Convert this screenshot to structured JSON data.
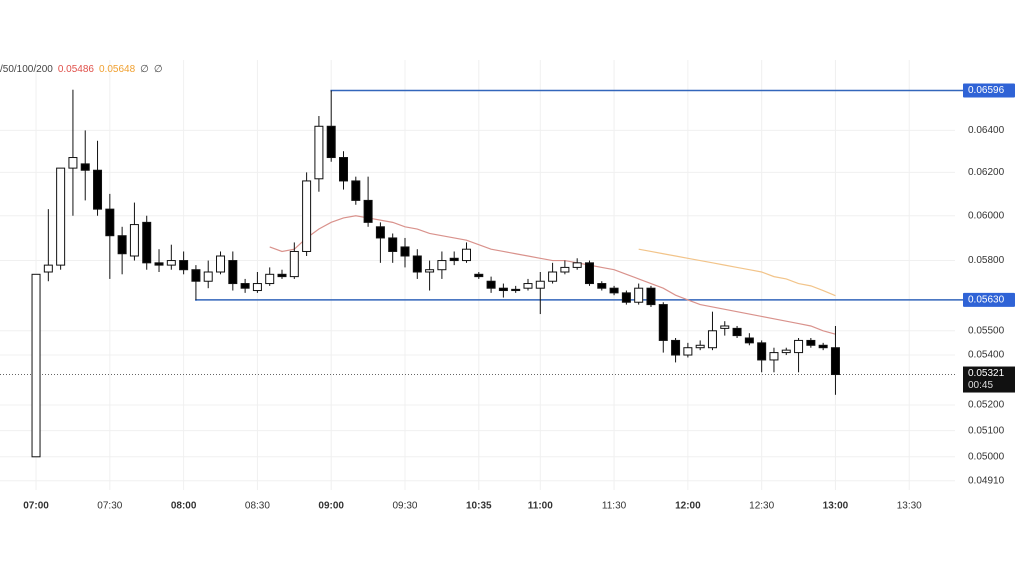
{
  "chart_data": {
    "type": "candlestick",
    "legend": {
      "prefix": "/50/100/200",
      "symbols": [
        "∅",
        "∅"
      ]
    },
    "candles": {
      "open": [
        0.05,
        0.0575,
        0.0578,
        0.0622,
        0.0624,
        0.0621,
        0.0603,
        0.0591,
        0.0582,
        0.0597,
        0.0579,
        0.0578,
        0.058,
        0.0576,
        0.0571,
        0.0575,
        0.058,
        0.057,
        0.0567,
        0.057,
        0.0574,
        0.0573,
        0.0584,
        0.0617,
        0.0642,
        0.0627,
        0.0616,
        0.0607,
        0.0595,
        0.059,
        0.0586,
        0.0582,
        0.0575,
        0.0576,
        0.0581,
        0.058,
        0.0574,
        0.0571,
        0.0568,
        0.05675,
        0.0568,
        0.0568,
        0.0571,
        0.0575,
        0.0577,
        0.0579,
        0.057,
        0.0568,
        0.0566,
        0.0562,
        0.0568,
        0.0561,
        0.0546,
        0.054,
        0.0543,
        0.0543,
        0.0551,
        0.0551,
        0.0547,
        0.0545,
        0.0538,
        0.0541,
        0.0541,
        0.0546,
        0.0544,
        0.0543
      ],
      "high": [
        0.0574,
        0.0603,
        0.0622,
        0.066,
        0.064,
        0.0635,
        0.061,
        0.0595,
        0.0606,
        0.06,
        0.0585,
        0.0587,
        0.0584,
        0.0578,
        0.058,
        0.0584,
        0.0584,
        0.0572,
        0.0575,
        0.0577,
        0.0576,
        0.0588,
        0.062,
        0.0647,
        0.06596,
        0.063,
        0.0618,
        0.0618,
        0.0597,
        0.0592,
        0.059,
        0.0585,
        0.058,
        0.0584,
        0.0584,
        0.0588,
        0.0575,
        0.0573,
        0.057,
        0.0569,
        0.0572,
        0.0575,
        0.0579,
        0.058,
        0.0581,
        0.058,
        0.0571,
        0.0569,
        0.0567,
        0.057,
        0.0569,
        0.0562,
        0.0547,
        0.0545,
        0.0546,
        0.0558,
        0.0554,
        0.0552,
        0.0549,
        0.0546,
        0.0543,
        0.0543,
        0.0547,
        0.0547,
        0.0545,
        0.0552
      ],
      "low": [
        0.05,
        0.0571,
        0.0576,
        0.06,
        0.0607,
        0.06,
        0.0572,
        0.0574,
        0.058,
        0.0576,
        0.0575,
        0.0576,
        0.0574,
        0.0563,
        0.0568,
        0.0574,
        0.0567,
        0.0566,
        0.0566,
        0.0569,
        0.0572,
        0.0572,
        0.0582,
        0.0611,
        0.0625,
        0.0612,
        0.0605,
        0.0595,
        0.0579,
        0.0579,
        0.0577,
        0.0572,
        0.0567,
        0.0572,
        0.0578,
        0.0579,
        0.0572,
        0.0566,
        0.0564,
        0.0566,
        0.0567,
        0.0557,
        0.057,
        0.0574,
        0.0576,
        0.0569,
        0.0567,
        0.0565,
        0.0561,
        0.0561,
        0.056,
        0.0541,
        0.0537,
        0.0539,
        0.0542,
        0.0542,
        0.0548,
        0.0547,
        0.0544,
        0.0533,
        0.0533,
        0.054,
        0.0533,
        0.0543,
        0.0542,
        0.0524
      ],
      "close": [
        0.0574,
        0.0578,
        0.0622,
        0.0627,
        0.0621,
        0.0603,
        0.0591,
        0.0583,
        0.0596,
        0.0579,
        0.0578,
        0.058,
        0.0576,
        0.0571,
        0.0575,
        0.0582,
        0.057,
        0.0568,
        0.057,
        0.0574,
        0.0573,
        0.0584,
        0.0616,
        0.0642,
        0.0627,
        0.0616,
        0.0607,
        0.0597,
        0.059,
        0.0584,
        0.0582,
        0.0575,
        0.0576,
        0.058,
        0.058,
        0.0585,
        0.0573,
        0.0568,
        0.0567,
        0.0567,
        0.057,
        0.0571,
        0.0575,
        0.0577,
        0.0579,
        0.057,
        0.0568,
        0.0566,
        0.0562,
        0.0568,
        0.0561,
        0.0546,
        0.054,
        0.0543,
        0.0544,
        0.055,
        0.0552,
        0.0548,
        0.0545,
        0.0538,
        0.0541,
        0.0542,
        0.0546,
        0.0544,
        0.0543,
        0.05321
      ]
    },
    "overlays": [
      {
        "label": "0.05486",
        "color": "#d9928c",
        "text_color": "#e0504a",
        "values": [
          null,
          null,
          null,
          null,
          null,
          null,
          null,
          null,
          null,
          null,
          null,
          null,
          null,
          null,
          null,
          null,
          null,
          null,
          null,
          0.0586,
          0.0584,
          0.0585,
          0.059,
          0.0594,
          0.0597,
          0.0599,
          0.06,
          0.0599,
          0.0598,
          0.0597,
          0.0595,
          0.0594,
          0.0592,
          0.0591,
          0.059,
          0.0589,
          0.0587,
          0.0585,
          0.0584,
          0.0583,
          0.0582,
          0.0581,
          0.058,
          0.058,
          0.0579,
          0.0578,
          0.0577,
          0.0576,
          0.0574,
          0.0572,
          0.057,
          0.0568,
          0.0565,
          0.0563,
          0.0561,
          0.056,
          0.0559,
          0.0558,
          0.0557,
          0.0556,
          0.0555,
          0.0554,
          0.0553,
          0.0552,
          0.055,
          0.05486
        ]
      },
      {
        "label": "0.05648",
        "color": "#f2c48a",
        "text_color": "#f0a030",
        "values": [
          null,
          null,
          null,
          null,
          null,
          null,
          null,
          null,
          null,
          null,
          null,
          null,
          null,
          null,
          null,
          null,
          null,
          null,
          null,
          null,
          null,
          null,
          null,
          null,
          null,
          null,
          null,
          null,
          null,
          null,
          null,
          null,
          null,
          null,
          null,
          null,
          null,
          null,
          null,
          null,
          null,
          null,
          null,
          null,
          null,
          null,
          null,
          null,
          null,
          0.0585,
          0.0584,
          0.0583,
          0.0582,
          0.0581,
          0.058,
          0.0579,
          0.0578,
          0.0577,
          0.0576,
          0.0575,
          0.0573,
          0.0572,
          0.057,
          0.0569,
          0.0567,
          0.05648
        ]
      }
    ],
    "levels": [
      {
        "value": 0.06596,
        "label": "0.06596",
        "start": 24
      },
      {
        "value": 0.0563,
        "label": "0.05630",
        "start": 13
      }
    ],
    "current": {
      "value": 0.05321,
      "label": "0.05321",
      "countdown": "00:45"
    },
    "log_scale": true,
    "grid": true,
    "ylim": [
      0.04876,
      0.0675
    ],
    "yticks": [
      {
        "value": 0.064,
        "label": "0.06400"
      },
      {
        "value": 0.062,
        "label": "0.06200"
      },
      {
        "value": 0.06,
        "label": "0.06000"
      },
      {
        "value": 0.058,
        "label": "0.05800"
      },
      {
        "value": 0.055,
        "label": "0.05500"
      },
      {
        "value": 0.054,
        "label": "0.05400"
      },
      {
        "value": 0.052,
        "label": "0.05200"
      },
      {
        "value": 0.051,
        "label": "0.05100"
      },
      {
        "value": 0.05,
        "label": "0.05000"
      },
      {
        "value": 0.0491,
        "label": "0.04910"
      }
    ],
    "xlim": [
      -2.93,
      74.72
    ],
    "xticks": [
      {
        "value": 0,
        "label": "07:00",
        "bold": true
      },
      {
        "value": 6,
        "label": "07:30"
      },
      {
        "value": 12,
        "label": "08:00",
        "bold": true
      },
      {
        "value": 18,
        "label": "08:30"
      },
      {
        "value": 24,
        "label": "09:00",
        "bold": true
      },
      {
        "value": 30,
        "label": "09:30"
      },
      {
        "value": 36,
        "label": "10:35",
        "bold": true
      },
      {
        "value": 41,
        "label": "11:00",
        "bold": true
      },
      {
        "value": 47,
        "label": "11:30"
      },
      {
        "value": 53,
        "label": "12:00",
        "bold": true
      },
      {
        "value": 59,
        "label": "12:30"
      },
      {
        "value": 65,
        "label": "13:00",
        "bold": true
      },
      {
        "value": 71,
        "label": "13:30"
      }
    ]
  }
}
